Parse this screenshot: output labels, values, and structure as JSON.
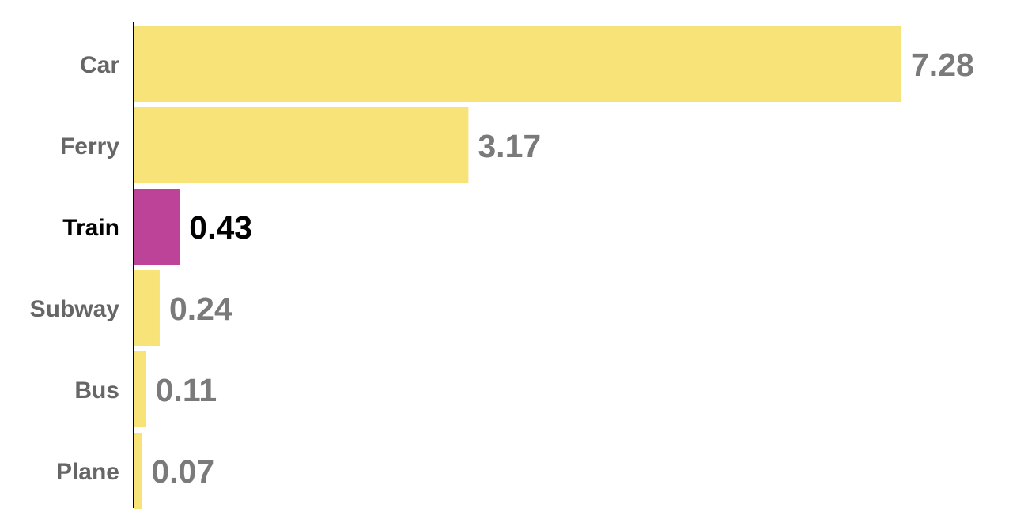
{
  "chart_data": {
    "type": "bar",
    "orientation": "horizontal",
    "categories": [
      "Car",
      "Ferry",
      "Train",
      "Subway",
      "Bus",
      "Plane"
    ],
    "values": [
      7.28,
      3.17,
      0.43,
      0.24,
      0.11,
      0.07
    ],
    "value_labels": [
      "7.28",
      "3.17",
      "0.43",
      "0.24",
      "0.11",
      "0.07"
    ],
    "highlighted_category": "Train",
    "title": "",
    "xlabel": "",
    "ylabel": "",
    "xlim": [
      0,
      7.28
    ],
    "grid": false,
    "legend": "none",
    "colors": {
      "bar": "#f8e378",
      "highlight_bar": "#bc4397",
      "label": "#666666",
      "value_label": "#7a7a7a",
      "highlight_label": "#000000",
      "axis": "#000000"
    }
  }
}
